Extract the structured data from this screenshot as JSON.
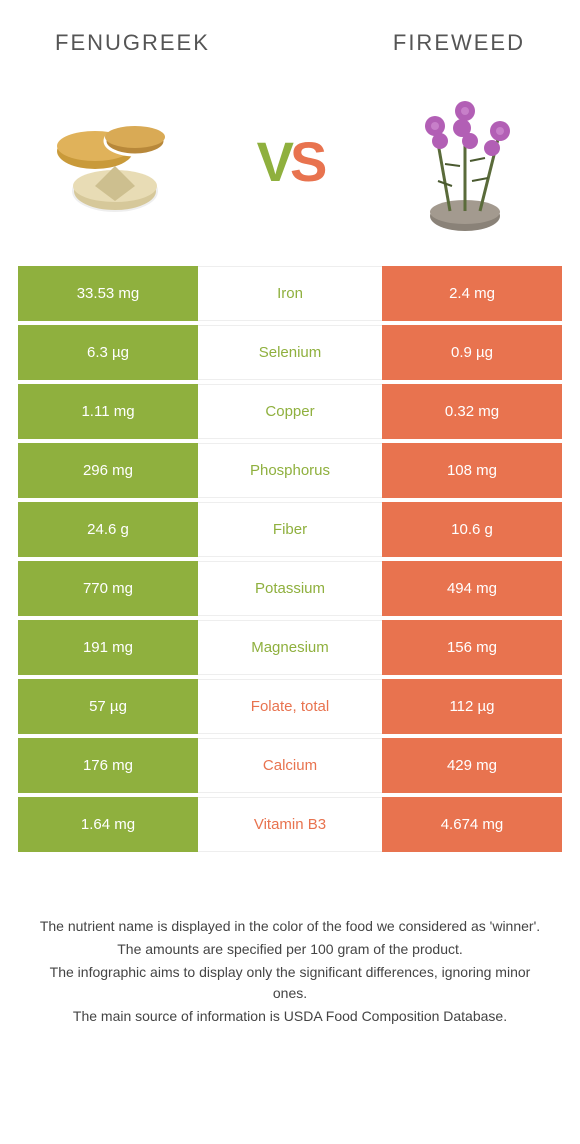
{
  "header": {
    "left_title": "Fenugreek",
    "right_title": "Fireweed"
  },
  "vs": {
    "v": "V",
    "s": "S"
  },
  "colors": {
    "left": "#8fb03e",
    "right": "#e8734f"
  },
  "rows": [
    {
      "left": "33.53 mg",
      "label": "Iron",
      "right": "2.4 mg",
      "winner": "left"
    },
    {
      "left": "6.3 µg",
      "label": "Selenium",
      "right": "0.9 µg",
      "winner": "left"
    },
    {
      "left": "1.11 mg",
      "label": "Copper",
      "right": "0.32 mg",
      "winner": "left"
    },
    {
      "left": "296 mg",
      "label": "Phosphorus",
      "right": "108 mg",
      "winner": "left"
    },
    {
      "left": "24.6 g",
      "label": "Fiber",
      "right": "10.6 g",
      "winner": "left"
    },
    {
      "left": "770 mg",
      "label": "Potassium",
      "right": "494 mg",
      "winner": "left"
    },
    {
      "left": "191 mg",
      "label": "Magnesium",
      "right": "156 mg",
      "winner": "left"
    },
    {
      "left": "57 µg",
      "label": "Folate, total",
      "right": "112 µg",
      "winner": "right"
    },
    {
      "left": "176 mg",
      "label": "Calcium",
      "right": "429 mg",
      "winner": "right"
    },
    {
      "left": "1.64 mg",
      "label": "Vitamin B3",
      "right": "4.674 mg",
      "winner": "right"
    }
  ],
  "footer": {
    "line1": "The nutrient name is displayed in the color of the food we considered as 'winner'.",
    "line2": "The amounts are specified per 100 gram of the product.",
    "line3": "The infographic aims to display only the significant differences, ignoring minor ones.",
    "line4": "The main source of information is USDA Food Composition Database."
  }
}
